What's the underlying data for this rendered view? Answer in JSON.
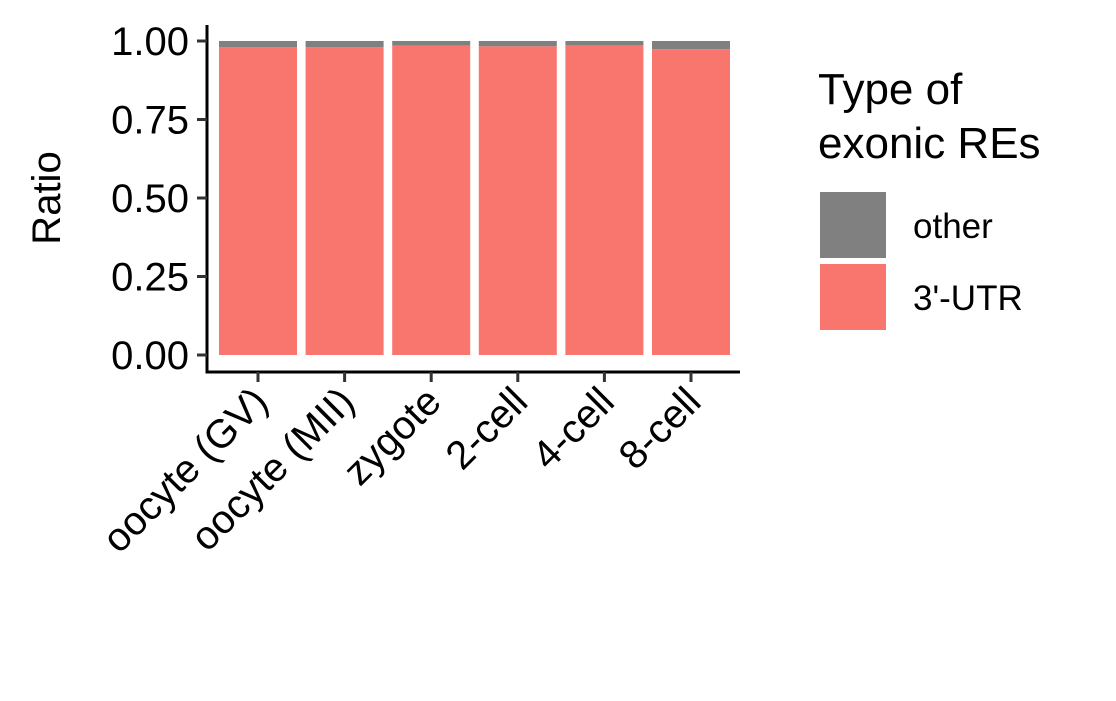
{
  "chart_data": {
    "type": "bar",
    "stacked": true,
    "categories": [
      "oocyte (GV)",
      "oocyte (MII)",
      "zygote",
      "2-cell",
      "4-cell",
      "8-cell"
    ],
    "series": [
      {
        "name": "3'-UTR",
        "color": "#F8766D",
        "values": [
          0.98,
          0.98,
          0.985,
          0.983,
          0.986,
          0.974
        ]
      },
      {
        "name": "other",
        "color": "#808080",
        "values": [
          0.02,
          0.02,
          0.015,
          0.017,
          0.014,
          0.026
        ]
      }
    ],
    "ylabel": "Ratio",
    "xlabel": "",
    "ylim": [
      0,
      1
    ],
    "yticks": [
      0.0,
      0.25,
      0.5,
      0.75,
      1.0
    ],
    "ytick_labels": [
      "0.00",
      "0.25",
      "0.50",
      "0.75",
      "1.00"
    ],
    "legend": {
      "title_lines": [
        "Type of",
        "exonic REs"
      ],
      "entries": [
        "other",
        "3'-UTR"
      ],
      "placement": "right"
    },
    "grid": false
  }
}
